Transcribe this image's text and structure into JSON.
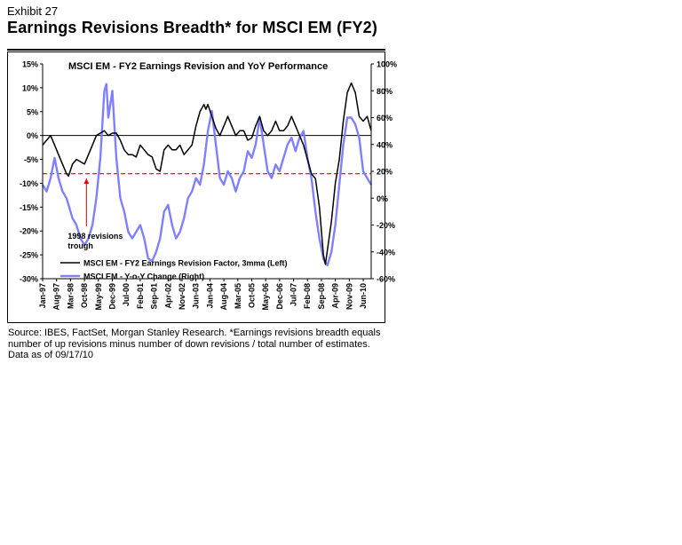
{
  "exhibit": {
    "label": "Exhibit 27",
    "title": "Earnings Revisions Breadth* for MSCI EM (FY2)"
  },
  "source_note": "Source: IBES,  FactSet, Morgan Stanley Research. *Earnings revisions breadth equals number of up revisions minus number of down revisions / total number of estimates.  Data as of 09/17/10",
  "chart_data": {
    "type": "line",
    "title": "MSCI EM - FY2 Earnings Revision and YoY Performance",
    "xlabel": "",
    "ylabel_left": "",
    "ylabel_right": "",
    "x_range": [
      0,
      165
    ],
    "x_ticks": [
      {
        "label": "Jan-97",
        "x": 0
      },
      {
        "label": "Aug-97",
        "x": 7
      },
      {
        "label": "Mar-98",
        "x": 14
      },
      {
        "label": "Oct-98",
        "x": 21
      },
      {
        "label": "May-99",
        "x": 28
      },
      {
        "label": "Dec-99",
        "x": 35
      },
      {
        "label": "Jul-00",
        "x": 42
      },
      {
        "label": "Feb-01",
        "x": 49
      },
      {
        "label": "Sep-01",
        "x": 56
      },
      {
        "label": "Apr-02",
        "x": 63
      },
      {
        "label": "Nov-02",
        "x": 70
      },
      {
        "label": "Jun-03",
        "x": 77
      },
      {
        "label": "Jan-04",
        "x": 84
      },
      {
        "label": "Aug-04",
        "x": 91
      },
      {
        "label": "Mar-05",
        "x": 98
      },
      {
        "label": "Oct-05",
        "x": 105
      },
      {
        "label": "May-06",
        "x": 112
      },
      {
        "label": "Dec-06",
        "x": 119
      },
      {
        "label": "Jul-07",
        "x": 126
      },
      {
        "label": "Feb-08",
        "x": 133
      },
      {
        "label": "Sep-08",
        "x": 140
      },
      {
        "label": "Apr-09",
        "x": 147
      },
      {
        "label": "Nov-09",
        "x": 154
      },
      {
        "label": "Jun-10",
        "x": 161
      }
    ],
    "y_left": {
      "min": -30,
      "max": 15,
      "ticks": [
        15,
        10,
        5,
        0,
        -5,
        -10,
        -15,
        -20,
        -25,
        -30
      ],
      "tick_labels": [
        "15%",
        "10%",
        "5%",
        "0%",
        "-5%",
        "-10%",
        "-15%",
        "-20%",
        "-25%",
        "-30%"
      ]
    },
    "y_right": {
      "min": -60,
      "max": 100,
      "ticks": [
        100,
        80,
        60,
        40,
        20,
        0,
        -20,
        -40,
        -60
      ],
      "tick_labels": [
        "100%",
        "80%",
        "60%",
        "40%",
        "20%",
        "0%",
        "-20%",
        "-40%",
        "-60%"
      ]
    },
    "reference_lines": [
      {
        "axis": "left",
        "value": 0,
        "style": "solid",
        "color": "#000000"
      },
      {
        "axis": "left",
        "value": -8,
        "style": "dashed",
        "color": "#e60000"
      }
    ],
    "annotations": [
      {
        "text_lines": [
          "1998 revisions",
          "trough"
        ],
        "arrow_x": 22,
        "arrow_y_from": -19,
        "arrow_y_to": -9
      }
    ],
    "legend": {
      "placement": "bottom-right",
      "entries": [
        "MSCI EM - FY2 Earnings Revision Factor, 3mma (Left)",
        "MSCI EM - Y-o-Y Change (Right)"
      ]
    },
    "series": [
      {
        "name": "MSCI EM - FY2 Earnings Revision Factor, 3mma (Left)",
        "axis": "left",
        "color": "#000000",
        "points": [
          [
            0,
            -2
          ],
          [
            2,
            -1
          ],
          [
            4,
            0
          ],
          [
            6,
            -2
          ],
          [
            8,
            -4
          ],
          [
            10,
            -6
          ],
          [
            12,
            -8
          ],
          [
            13,
            -8.5
          ],
          [
            15,
            -6
          ],
          [
            17,
            -5
          ],
          [
            19,
            -5.5
          ],
          [
            21,
            -6
          ],
          [
            23,
            -4
          ],
          [
            25,
            -2
          ],
          [
            27,
            0
          ],
          [
            29,
            0.5
          ],
          [
            31,
            1
          ],
          [
            33,
            0
          ],
          [
            35,
            0.5
          ],
          [
            37,
            0.5
          ],
          [
            39,
            -1
          ],
          [
            41,
            -3
          ],
          [
            43,
            -4
          ],
          [
            45,
            -4
          ],
          [
            47,
            -4.5
          ],
          [
            49,
            -2
          ],
          [
            51,
            -3
          ],
          [
            53,
            -4
          ],
          [
            55,
            -4.5
          ],
          [
            57,
            -7
          ],
          [
            59,
            -7.5
          ],
          [
            61,
            -3
          ],
          [
            63,
            -2
          ],
          [
            65,
            -3
          ],
          [
            67,
            -3
          ],
          [
            69,
            -2
          ],
          [
            71,
            -4
          ],
          [
            73,
            -3
          ],
          [
            75,
            -2
          ],
          [
            77,
            2
          ],
          [
            79,
            5
          ],
          [
            81,
            6.5
          ],
          [
            82,
            5.5
          ],
          [
            83,
            6.5
          ],
          [
            85,
            4
          ],
          [
            87,
            1.5
          ],
          [
            89,
            0
          ],
          [
            91,
            2
          ],
          [
            93,
            4
          ],
          [
            95,
            2
          ],
          [
            97,
            0
          ],
          [
            99,
            1
          ],
          [
            101,
            1
          ],
          [
            103,
            -1
          ],
          [
            105,
            -0.5
          ],
          [
            107,
            2
          ],
          [
            109,
            4
          ],
          [
            111,
            1
          ],
          [
            113,
            0
          ],
          [
            115,
            1
          ],
          [
            117,
            3
          ],
          [
            119,
            1
          ],
          [
            121,
            1
          ],
          [
            123,
            2
          ],
          [
            125,
            4
          ],
          [
            127,
            2
          ],
          [
            129,
            0
          ],
          [
            131,
            -2
          ],
          [
            133,
            -5
          ],
          [
            135,
            -8
          ],
          [
            137,
            -9
          ],
          [
            139,
            -15
          ],
          [
            141,
            -25
          ],
          [
            142,
            -27
          ],
          [
            143,
            -24
          ],
          [
            145,
            -18
          ],
          [
            147,
            -10
          ],
          [
            149,
            -5
          ],
          [
            151,
            3
          ],
          [
            153,
            9
          ],
          [
            155,
            11
          ],
          [
            157,
            9
          ],
          [
            159,
            4
          ],
          [
            161,
            3
          ],
          [
            163,
            4
          ],
          [
            165,
            1
          ]
        ]
      },
      {
        "name": "MSCI EM - Y-o-Y Change (Right)",
        "axis": "right",
        "color": "#8080ff",
        "points": [
          [
            0,
            10
          ],
          [
            2,
            5
          ],
          [
            4,
            15
          ],
          [
            6,
            30
          ],
          [
            8,
            15
          ],
          [
            10,
            5
          ],
          [
            12,
            0
          ],
          [
            13,
            -5
          ],
          [
            15,
            -15
          ],
          [
            17,
            -20
          ],
          [
            19,
            -30
          ],
          [
            21,
            -35
          ],
          [
            23,
            -30
          ],
          [
            25,
            -20
          ],
          [
            27,
            0
          ],
          [
            29,
            30
          ],
          [
            31,
            80
          ],
          [
            32,
            85
          ],
          [
            33,
            60
          ],
          [
            35,
            80
          ],
          [
            37,
            30
          ],
          [
            39,
            0
          ],
          [
            41,
            -10
          ],
          [
            43,
            -25
          ],
          [
            45,
            -30
          ],
          [
            47,
            -25
          ],
          [
            49,
            -20
          ],
          [
            51,
            -30
          ],
          [
            53,
            -45
          ],
          [
            55,
            -47
          ],
          [
            57,
            -40
          ],
          [
            59,
            -30
          ],
          [
            61,
            -10
          ],
          [
            63,
            -5
          ],
          [
            65,
            -20
          ],
          [
            67,
            -30
          ],
          [
            69,
            -25
          ],
          [
            71,
            -15
          ],
          [
            73,
            0
          ],
          [
            75,
            5
          ],
          [
            77,
            15
          ],
          [
            79,
            10
          ],
          [
            81,
            25
          ],
          [
            83,
            50
          ],
          [
            85,
            65
          ],
          [
            87,
            40
          ],
          [
            89,
            15
          ],
          [
            91,
            10
          ],
          [
            93,
            20
          ],
          [
            95,
            15
          ],
          [
            97,
            5
          ],
          [
            99,
            15
          ],
          [
            101,
            20
          ],
          [
            103,
            35
          ],
          [
            105,
            30
          ],
          [
            107,
            40
          ],
          [
            109,
            60
          ],
          [
            111,
            40
          ],
          [
            113,
            20
          ],
          [
            115,
            15
          ],
          [
            117,
            25
          ],
          [
            119,
            20
          ],
          [
            121,
            30
          ],
          [
            123,
            40
          ],
          [
            125,
            45
          ],
          [
            127,
            35
          ],
          [
            129,
            45
          ],
          [
            131,
            50
          ],
          [
            133,
            30
          ],
          [
            135,
            15
          ],
          [
            137,
            -10
          ],
          [
            139,
            -30
          ],
          [
            141,
            -45
          ],
          [
            142,
            -48
          ],
          [
            143,
            -50
          ],
          [
            145,
            -40
          ],
          [
            147,
            -20
          ],
          [
            149,
            10
          ],
          [
            151,
            40
          ],
          [
            153,
            60
          ],
          [
            155,
            60
          ],
          [
            157,
            55
          ],
          [
            159,
            45
          ],
          [
            161,
            20
          ],
          [
            163,
            15
          ],
          [
            165,
            10
          ]
        ]
      }
    ]
  }
}
